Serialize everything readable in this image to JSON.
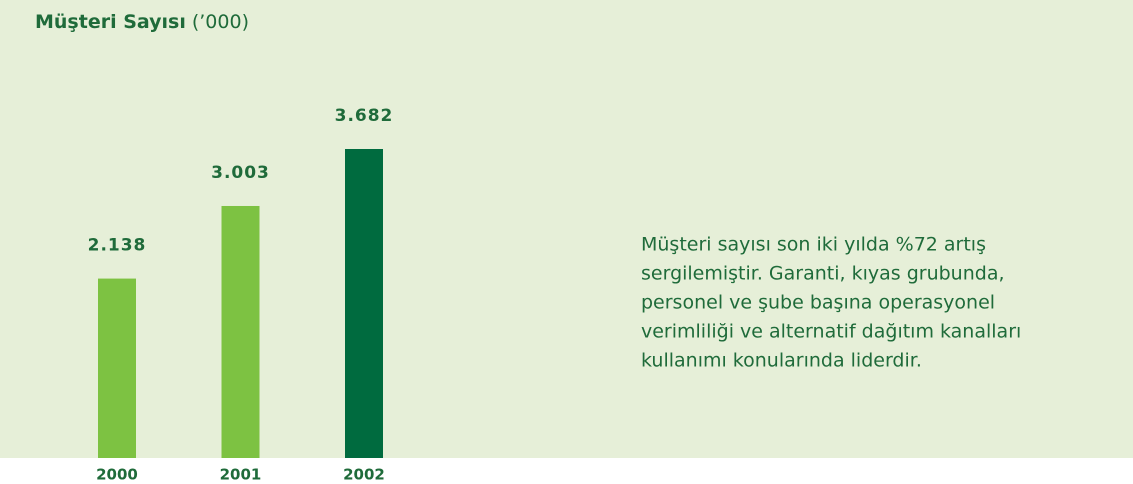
{
  "chart_data": {
    "type": "bar",
    "title": "Müşteri Sayısı",
    "subtitle": "(’000)",
    "categories": [
      "2000",
      "2001",
      "2002"
    ],
    "values": [
      2138,
      3003,
      3682
    ],
    "value_labels": [
      "2.138",
      "3.003",
      "3.682"
    ],
    "colors": [
      "#7dc242",
      "#7dc242",
      "#006b3f"
    ],
    "annotation": [
      "Müşteri sayısı son iki yılda %72 artış",
      "sergilemiştir. Garanti, kıyas grubunda,",
      "personel ve şube başına operasyonel",
      "verimliliği ve alternatif dağıtım kanalları",
      "kullanımı konularında liderdir."
    ]
  }
}
